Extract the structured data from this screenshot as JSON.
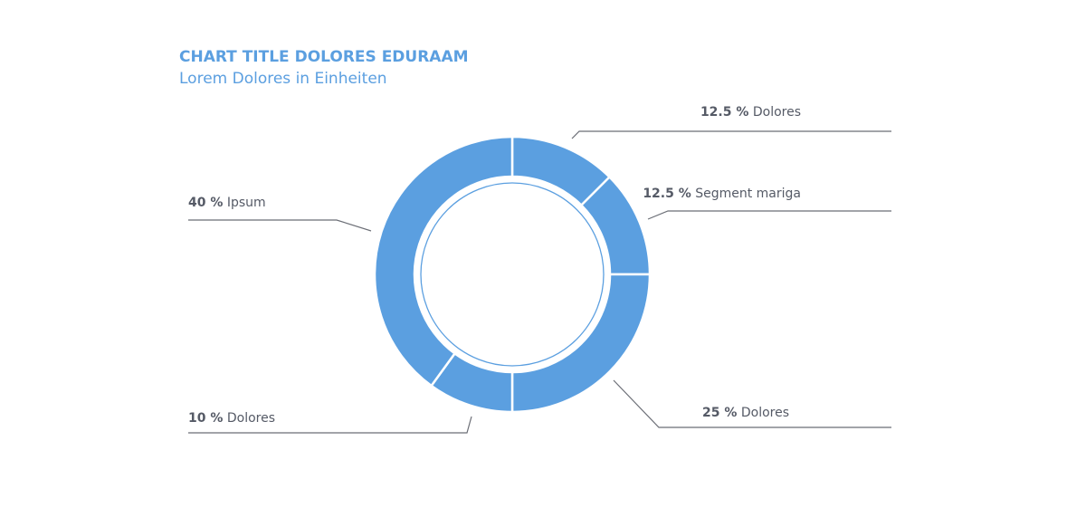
{
  "chart_data": {
    "type": "pie",
    "title": "CHART TITLE DOLORES EDURAAM",
    "subtitle": "Lorem Dolores in Einheiten",
    "categories": [
      "Dolores",
      "Segment mariga",
      "Dolores",
      "Dolores",
      "Ipsum"
    ],
    "values": [
      12.5,
      12.5,
      25,
      10,
      40
    ],
    "value_labels": [
      "12.5 %",
      "12.5 %",
      "25 %",
      "10 %",
      "40 %"
    ],
    "color": "#5b9fe0"
  }
}
